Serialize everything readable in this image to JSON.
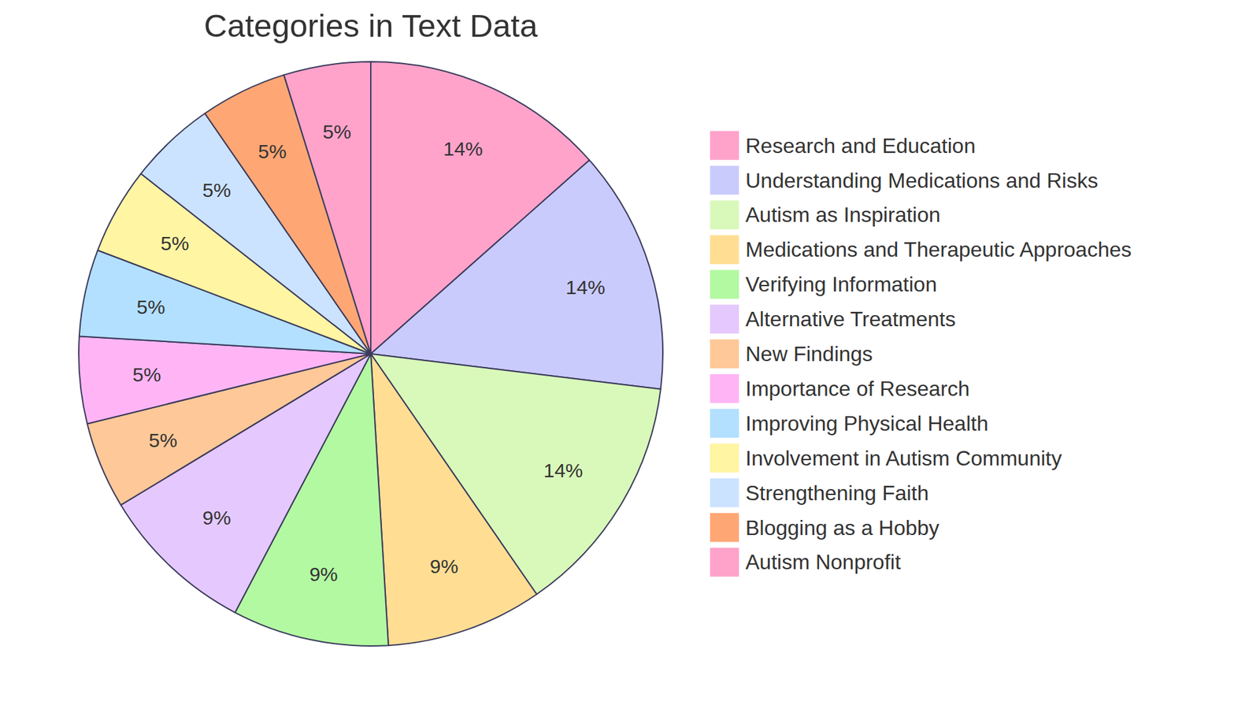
{
  "chart_data": {
    "type": "pie",
    "title": "Categories in Text Data",
    "categories": [
      "Research and Education",
      "Understanding Medications and Risks",
      "Autism as Inspiration",
      "Medications and Therapeutic Approaches",
      "Verifying Information",
      "Alternative Treatments",
      "New Findings",
      "Importance of Research",
      "Improving Physical Health",
      "Involvement in Autism Community",
      "Strengthening Faith",
      "Blogging as a Hobby",
      "Autism Nonprofit"
    ],
    "values": [
      14,
      14,
      14,
      9,
      9,
      9,
      5,
      5,
      5,
      5,
      5,
      5,
      5
    ],
    "value_labels": [
      "14%",
      "14%",
      "14%",
      "9%",
      "9%",
      "9%",
      "5%",
      "5%",
      "5%",
      "5%",
      "5%",
      "5%",
      "5%"
    ],
    "colors": [
      "#ffa3cb",
      "#cacbfd",
      "#d9f9ba",
      "#ffde94",
      "#b3f9a2",
      "#e5c9fe",
      "#ffc898",
      "#ffb5f5",
      "#b3e0ff",
      "#fff5a3",
      "#cce3ff",
      "#ffa774",
      "#ffa3cb"
    ],
    "data_labels": true,
    "legend": "right"
  }
}
